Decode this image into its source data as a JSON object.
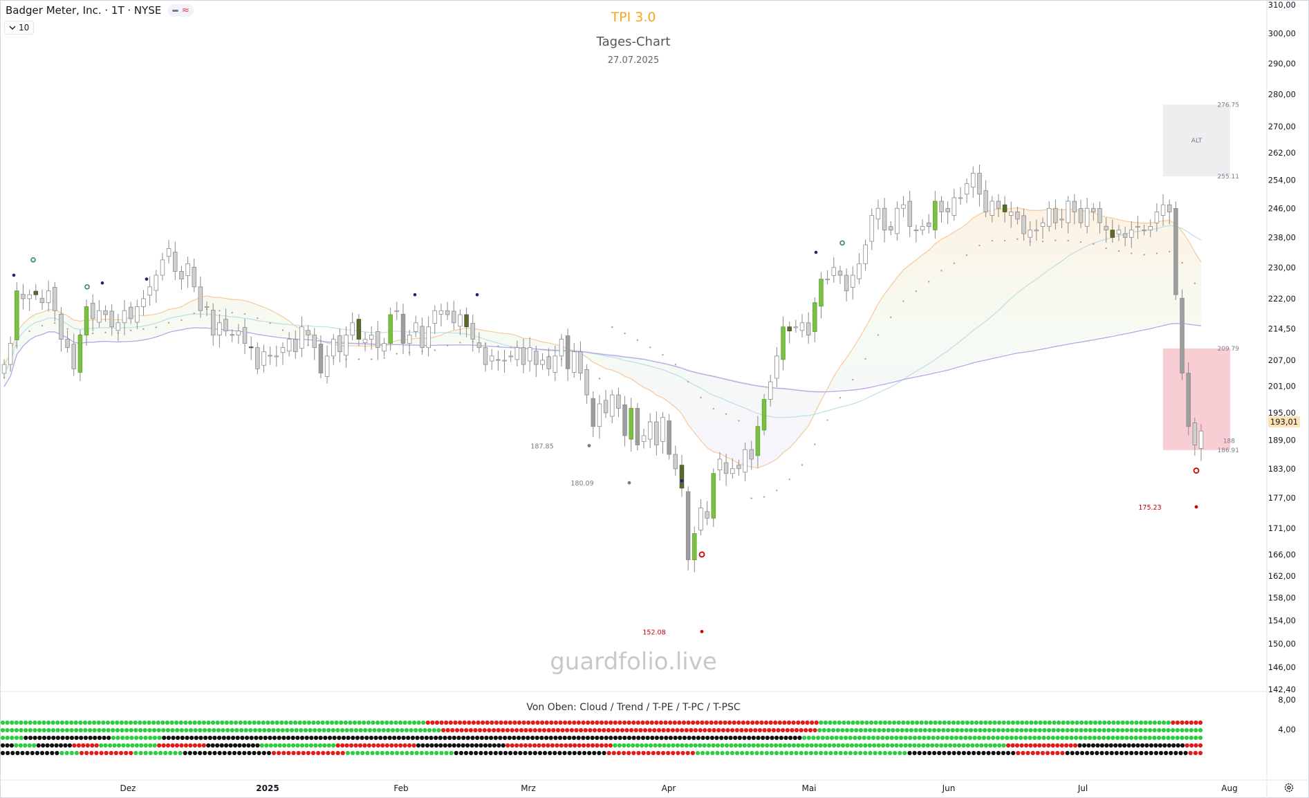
{
  "header": {
    "symbol": "Badger Meter, Inc. · 1T · NYSE",
    "interval": "10"
  },
  "titles": {
    "indicator": "TPI 3.0",
    "chart_name": "Tages-Chart",
    "date": "27.07.2025"
  },
  "watermark": "guardfolio.live",
  "subpanel_title": "Von Oben: Cloud / Trend / T-PE / T-PC / T-PSC",
  "current_price": "193,01",
  "subpanel_axis": [
    "8,00",
    "4,00"
  ],
  "icons": {
    "settings": "gear-icon",
    "interval_chevron": "chevron-down-icon"
  },
  "colors": {
    "up_candle": "#7bc043",
    "down_candle": "#cfcfcf",
    "dark_candle": "#5a6b2f",
    "accent": "#f5a623",
    "zone_red": "#f7c4cb",
    "zone_grey": "#e9eaec"
  },
  "chart_data": [
    {
      "type": "candlestick",
      "title": "TPI 3.0",
      "y_ticks": [
        310,
        300,
        290,
        280,
        270,
        262,
        254,
        246,
        238,
        230,
        222,
        214.5,
        207,
        201,
        195,
        189,
        183,
        177,
        171,
        166,
        162,
        158,
        154,
        150,
        146,
        142.4
      ],
      "y_tick_labels": [
        "310,00",
        "300,00",
        "290,00",
        "280,00",
        "270,00",
        "262,00",
        "254,00",
        "246,00",
        "238,00",
        "230,00",
        "222,00",
        "214,50",
        "207,00",
        "201,00",
        "195,00",
        "189,00",
        "183,00",
        "177,00",
        "171,00",
        "166,00",
        "162,00",
        "158,00",
        "154,00",
        "150,00",
        "146,00",
        "142,40"
      ],
      "x_labels": [
        "Dez",
        "2025",
        "Feb",
        "Mrz",
        "Apr",
        "Mai",
        "Jun",
        "Jul",
        "Aug"
      ],
      "scale": "log",
      "grid": false,
      "price_annotations": [
        {
          "label": "187.85",
          "value": 187.85
        },
        {
          "label": "180.09",
          "value": 180.09
        },
        {
          "label": "152.08",
          "value": 152.08
        },
        {
          "label": "175.23",
          "value": 175.23
        }
      ],
      "zones": [
        {
          "label": "ALT",
          "top": 276.75,
          "bottom": 255.11,
          "top_label": "276.75",
          "bottom_label": "255.11"
        },
        {
          "label": "",
          "top": 209.79,
          "bottom": 186.91,
          "top_label": "209.79",
          "bottom_label": "186.91",
          "mid_label": "188"
        }
      ],
      "candles_close": [
        206,
        211,
        224,
        222,
        223,
        223,
        221,
        224,
        219,
        212,
        210,
        205,
        213,
        220,
        217,
        219,
        218,
        215,
        216,
        219,
        217,
        220,
        222,
        225,
        228,
        232,
        235,
        229,
        227,
        231,
        225,
        219,
        220,
        213,
        216,
        214,
        213,
        214,
        211,
        210,
        205,
        209,
        208,
        208,
        210,
        212,
        209,
        215,
        213,
        210,
        204,
        208,
        212,
        209,
        213,
        216,
        212,
        212,
        213,
        210,
        211,
        218,
        219,
        211,
        213,
        216,
        210,
        215,
        219,
        219,
        218,
        216,
        218,
        215,
        212,
        210,
        206,
        208,
        207,
        207,
        208,
        210,
        206,
        210,
        206,
        207,
        205,
        208,
        212,
        205,
        209,
        204,
        199,
        192,
        197,
        195,
        199,
        196,
        190,
        196,
        188,
        190,
        193,
        188,
        194,
        186,
        183,
        179,
        165,
        170,
        175,
        173,
        182,
        185,
        182,
        183,
        183,
        187,
        185,
        192,
        198,
        202,
        208,
        215,
        214,
        215,
        216,
        213,
        221,
        227,
        227,
        230,
        228,
        224,
        228,
        231,
        236,
        244,
        246,
        240,
        240,
        246,
        247,
        241,
        240,
        241,
        241,
        248,
        245,
        245,
        249,
        249,
        253,
        256,
        250,
        245,
        248,
        246,
        245,
        245,
        243,
        239,
        240,
        240,
        242,
        246,
        242,
        243,
        248,
        245,
        242,
        246,
        245,
        242,
        240,
        238,
        240,
        238,
        240,
        241,
        240,
        241,
        245,
        247,
        245,
        223,
        204,
        192,
        188,
        191
      ]
    },
    {
      "type": "table",
      "title": "Von Oben: Cloud / Trend / T-PE / T-PC / T-PSC",
      "rows": [
        "Cloud",
        "Trend",
        "T-PE",
        "T-PC",
        "T-PSC"
      ],
      "values": [
        "gggggggggggggggggggggggggggggggggggggggggggggggggggggggggggggggggggggggggggggggggggggggggggggrrrrrrrrrrrrrrrrrrrrrrrrrrrrrrrrrrrrrrrrrrrrrrrrrrrrrrrrrrrrrrrrrrrrrrrrrrrrrrrrrrrrrrgggggggggggggggggggggggggggggggggggggggggggggggggggggggggggggggggggggggggggggrrrrrrr",
        "ggggggggggggggggggggggggggggggggggggggggggggggggggggggggggggggggggggggggggggggggggggggggggggggggrrrrrrrrrrrrrrrrrrrrrrrrrrrrrrrrrrrrrrrrrrrrrrrrrrrrrrrrrrrrrrrrrrrrrrrrrrrrrrrrrrgggggggggggggggggggggggggggggggggggggggggggggggggggggggggggggggggggggggggggggggggggg",
        "gggggkkkkkkkkkkkkkkkkkkkgggggggggggkkkkkkkkkkkkkkkkkkkkkkkkkkkkkkkkkkkkkkkkkkkkkkkkkkkkkkkkkkkkkkkkkkkkkkkkkkkkkkkkkkkkkkkkkkkkkkkkkkkkkkkkkkkkkkkkkkkkkkkkkkkkkkkkkkkkkkkkkkkggggggggggggggggggggggggggggggggggggggggggggggggggggggggggggggggggggggggggggggggggggggg",
        "kkkgggggkkkkkkkkrrrrrrgggggggggggggrrrrrrrrrrrkkkkkkkkkkkkgggggggggggggggggrrrrrrrrrrrrrrrrrrkkkkkkkkkkkkkkkkkkkkrrrrrrrrrrrrrrrrrrrrrrrrggggggggggggggggggggggggggggggggggggggggggggggggggggggggggggggggggggggggggggggggggggggggrrrrrrrrrrrrrrrrkkkkkkkkkkkkkkkkkkkkkkkkrrrr",
        "kkkkkkkkkkkkggggrrrrrrrrrrrggggggggggkkkkkkkkkkkkkkkkkkrrrrrrrrrrrrrrrggggggggggggggggggggggkkkkkkkkkkkkkkkkkkkkkkkkkkkkkkkrrrrrrrrrrrrrrrrrrgggggggggggggggggggggggggggggggggggggggggggkkkkkkkkkkkkkkkkkkkkkkrrrrrrrrrrkkkkkkkkkkkkkkkkkkkkkkkkkrrr"
      ]
    }
  ]
}
